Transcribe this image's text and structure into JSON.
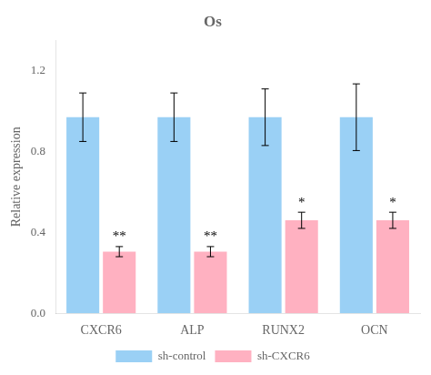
{
  "chart_data": {
    "type": "bar",
    "title": "Os",
    "ylabel": "Relative expression",
    "categories": [
      "CXCR6",
      "ALP",
      "RUNX2",
      "OCN"
    ],
    "series": [
      {
        "name": "sh-control",
        "values": [
          0.97,
          0.97,
          0.97,
          0.97
        ],
        "errors": [
          0.12,
          0.12,
          0.14,
          0.165
        ]
      },
      {
        "name": "sh-CXCR6",
        "values": [
          0.305,
          0.305,
          0.46,
          0.46
        ],
        "errors": [
          0.025,
          0.025,
          0.04,
          0.04
        ],
        "annotations": [
          "**",
          "**",
          "*",
          "*"
        ]
      }
    ],
    "ylim": [
      0,
      1.35
    ],
    "yticks": [
      {
        "value": 0.0,
        "label": "0.0"
      },
      0.4,
      0.8,
      1.2
    ],
    "grid": false,
    "legend": "bottom"
  }
}
